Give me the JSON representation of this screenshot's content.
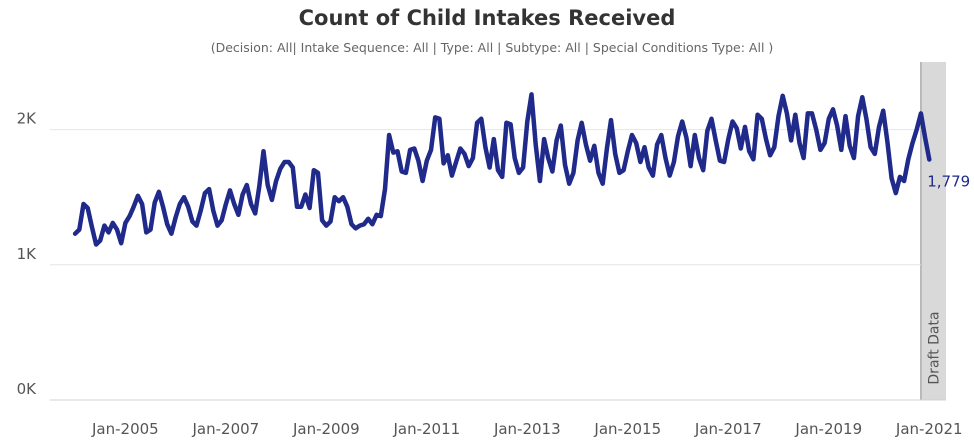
{
  "chart_data": {
    "type": "line",
    "title": "Count of Child Intakes Received",
    "subtitle": "(Decision: All| Intake Sequence: All | Type: All  | Subtype: All | Special Conditions Type: All )",
    "xlabel": "",
    "ylabel": "",
    "x_tick_labels": [
      "Jan-2005",
      "Jan-2007",
      "Jan-2009",
      "Jan-2011",
      "Jan-2013",
      "Jan-2015",
      "Jan-2017",
      "Jan-2019",
      "Jan-2021"
    ],
    "y_tick_labels": [
      "0K",
      "1K",
      "2K"
    ],
    "y_ticks": [
      0,
      1000,
      2000
    ],
    "ylim": [
      0,
      2500
    ],
    "xlim": [
      "2003-07",
      "2021-05"
    ],
    "grid": true,
    "draft_band": {
      "label": "Draft Data",
      "start": "2020-11",
      "end": "2021-05",
      "color": "#d9d9d9"
    },
    "end_label": "1,779",
    "series": [
      {
        "color": "#1f2a8a",
        "points": [
          [
            "2004-01",
            1230
          ],
          [
            "2004-02",
            1260
          ],
          [
            "2004-03",
            1450
          ],
          [
            "2004-04",
            1420
          ],
          [
            "2004-05",
            1280
          ],
          [
            "2004-06",
            1150
          ],
          [
            "2004-07",
            1180
          ],
          [
            "2004-08",
            1290
          ],
          [
            "2004-09",
            1240
          ],
          [
            "2004-10",
            1310
          ],
          [
            "2004-11",
            1260
          ],
          [
            "2004-12",
            1160
          ],
          [
            "2005-01",
            1310
          ],
          [
            "2005-02",
            1360
          ],
          [
            "2005-03",
            1430
          ],
          [
            "2005-04",
            1510
          ],
          [
            "2005-05",
            1450
          ],
          [
            "2005-06",
            1240
          ],
          [
            "2005-07",
            1260
          ],
          [
            "2005-08",
            1460
          ],
          [
            "2005-09",
            1540
          ],
          [
            "2005-10",
            1430
          ],
          [
            "2005-11",
            1300
          ],
          [
            "2005-12",
            1230
          ],
          [
            "2006-01",
            1350
          ],
          [
            "2006-02",
            1450
          ],
          [
            "2006-03",
            1500
          ],
          [
            "2006-04",
            1430
          ],
          [
            "2006-05",
            1320
          ],
          [
            "2006-06",
            1290
          ],
          [
            "2006-07",
            1400
          ],
          [
            "2006-08",
            1530
          ],
          [
            "2006-09",
            1560
          ],
          [
            "2006-10",
            1400
          ],
          [
            "2006-11",
            1290
          ],
          [
            "2006-12",
            1330
          ],
          [
            "2007-01",
            1450
          ],
          [
            "2007-02",
            1550
          ],
          [
            "2007-03",
            1450
          ],
          [
            "2007-04",
            1370
          ],
          [
            "2007-05",
            1520
          ],
          [
            "2007-06",
            1590
          ],
          [
            "2007-07",
            1450
          ],
          [
            "2007-08",
            1380
          ],
          [
            "2007-09",
            1580
          ],
          [
            "2007-10",
            1840
          ],
          [
            "2007-11",
            1590
          ],
          [
            "2007-12",
            1480
          ],
          [
            "2008-01",
            1620
          ],
          [
            "2008-02",
            1710
          ],
          [
            "2008-03",
            1760
          ],
          [
            "2008-04",
            1760
          ],
          [
            "2008-05",
            1720
          ],
          [
            "2008-06",
            1430
          ],
          [
            "2008-07",
            1430
          ],
          [
            "2008-08",
            1520
          ],
          [
            "2008-09",
            1420
          ],
          [
            "2008-10",
            1700
          ],
          [
            "2008-11",
            1680
          ],
          [
            "2008-12",
            1330
          ],
          [
            "2009-01",
            1290
          ],
          [
            "2009-02",
            1320
          ],
          [
            "2009-03",
            1500
          ],
          [
            "2009-04",
            1470
          ],
          [
            "2009-05",
            1500
          ],
          [
            "2009-06",
            1430
          ],
          [
            "2009-07",
            1300
          ],
          [
            "2009-08",
            1270
          ],
          [
            "2009-09",
            1290
          ],
          [
            "2009-10",
            1300
          ],
          [
            "2009-11",
            1340
          ],
          [
            "2009-12",
            1300
          ],
          [
            "2010-01",
            1370
          ],
          [
            "2010-02",
            1360
          ],
          [
            "2010-03",
            1560
          ],
          [
            "2010-04",
            1960
          ],
          [
            "2010-05",
            1830
          ],
          [
            "2010-06",
            1840
          ],
          [
            "2010-07",
            1690
          ],
          [
            "2010-08",
            1680
          ],
          [
            "2010-09",
            1850
          ],
          [
            "2010-10",
            1860
          ],
          [
            "2010-11",
            1770
          ],
          [
            "2010-12",
            1620
          ],
          [
            "2011-01",
            1770
          ],
          [
            "2011-02",
            1850
          ],
          [
            "2011-03",
            2090
          ],
          [
            "2011-04",
            2080
          ],
          [
            "2011-05",
            1750
          ],
          [
            "2011-06",
            1810
          ],
          [
            "2011-07",
            1660
          ],
          [
            "2011-08",
            1760
          ],
          [
            "2011-09",
            1860
          ],
          [
            "2011-10",
            1820
          ],
          [
            "2011-11",
            1730
          ],
          [
            "2011-12",
            1790
          ],
          [
            "2012-01",
            2050
          ],
          [
            "2012-02",
            2080
          ],
          [
            "2012-03",
            1870
          ],
          [
            "2012-04",
            1720
          ],
          [
            "2012-05",
            1930
          ],
          [
            "2012-06",
            1700
          ],
          [
            "2012-07",
            1650
          ],
          [
            "2012-08",
            2050
          ],
          [
            "2012-09",
            2040
          ],
          [
            "2012-10",
            1790
          ],
          [
            "2012-11",
            1680
          ],
          [
            "2012-12",
            1720
          ],
          [
            "2013-01",
            2060
          ],
          [
            "2013-02",
            2260
          ],
          [
            "2013-03",
            1890
          ],
          [
            "2013-04",
            1620
          ],
          [
            "2013-05",
            1930
          ],
          [
            "2013-06",
            1790
          ],
          [
            "2013-07",
            1690
          ],
          [
            "2013-08",
            1920
          ],
          [
            "2013-09",
            2030
          ],
          [
            "2013-10",
            1740
          ],
          [
            "2013-11",
            1600
          ],
          [
            "2013-12",
            1680
          ],
          [
            "2014-01",
            1920
          ],
          [
            "2014-02",
            2050
          ],
          [
            "2014-03",
            1890
          ],
          [
            "2014-04",
            1770
          ],
          [
            "2014-05",
            1880
          ],
          [
            "2014-06",
            1680
          ],
          [
            "2014-07",
            1600
          ],
          [
            "2014-08",
            1860
          ],
          [
            "2014-09",
            2070
          ],
          [
            "2014-10",
            1820
          ],
          [
            "2014-11",
            1680
          ],
          [
            "2014-12",
            1700
          ],
          [
            "2015-01",
            1840
          ],
          [
            "2015-02",
            1960
          ],
          [
            "2015-03",
            1900
          ],
          [
            "2015-04",
            1760
          ],
          [
            "2015-05",
            1870
          ],
          [
            "2015-06",
            1720
          ],
          [
            "2015-07",
            1660
          ],
          [
            "2015-08",
            1890
          ],
          [
            "2015-09",
            1960
          ],
          [
            "2015-10",
            1790
          ],
          [
            "2015-11",
            1660
          ],
          [
            "2015-12",
            1760
          ],
          [
            "2016-01",
            1950
          ],
          [
            "2016-02",
            2060
          ],
          [
            "2016-03",
            1940
          ],
          [
            "2016-04",
            1730
          ],
          [
            "2016-05",
            1960
          ],
          [
            "2016-06",
            1790
          ],
          [
            "2016-07",
            1700
          ],
          [
            "2016-08",
            1990
          ],
          [
            "2016-09",
            2080
          ],
          [
            "2016-10",
            1920
          ],
          [
            "2016-11",
            1770
          ],
          [
            "2016-12",
            1760
          ],
          [
            "2017-01",
            1930
          ],
          [
            "2017-02",
            2060
          ],
          [
            "2017-03",
            2010
          ],
          [
            "2017-04",
            1860
          ],
          [
            "2017-05",
            2020
          ],
          [
            "2017-06",
            1840
          ],
          [
            "2017-07",
            1780
          ],
          [
            "2017-08",
            2110
          ],
          [
            "2017-09",
            2080
          ],
          [
            "2017-10",
            1930
          ],
          [
            "2017-11",
            1810
          ],
          [
            "2017-12",
            1870
          ],
          [
            "2018-01",
            2100
          ],
          [
            "2018-02",
            2250
          ],
          [
            "2018-03",
            2120
          ],
          [
            "2018-04",
            1920
          ],
          [
            "2018-05",
            2110
          ],
          [
            "2018-06",
            1900
          ],
          [
            "2018-07",
            1790
          ],
          [
            "2018-08",
            2120
          ],
          [
            "2018-09",
            2120
          ],
          [
            "2018-10",
            2000
          ],
          [
            "2018-11",
            1850
          ],
          [
            "2018-12",
            1900
          ],
          [
            "2019-01",
            2080
          ],
          [
            "2019-02",
            2150
          ],
          [
            "2019-03",
            2030
          ],
          [
            "2019-04",
            1850
          ],
          [
            "2019-05",
            2100
          ],
          [
            "2019-06",
            1880
          ],
          [
            "2019-07",
            1790
          ],
          [
            "2019-08",
            2100
          ],
          [
            "2019-09",
            2240
          ],
          [
            "2019-10",
            2080
          ],
          [
            "2019-11",
            1870
          ],
          [
            "2019-12",
            1820
          ],
          [
            "2020-01",
            2020
          ],
          [
            "2020-02",
            2140
          ],
          [
            "2020-03",
            1910
          ],
          [
            "2020-04",
            1640
          ],
          [
            "2020-05",
            1530
          ],
          [
            "2020-06",
            1650
          ],
          [
            "2020-07",
            1620
          ],
          [
            "2020-08",
            1780
          ],
          [
            "2020-09",
            1900
          ],
          [
            "2020-10",
            2000
          ],
          [
            "2020-11",
            2120
          ],
          [
            "2020-12",
            1940
          ],
          [
            "2021-01",
            1779
          ]
        ]
      }
    ]
  }
}
